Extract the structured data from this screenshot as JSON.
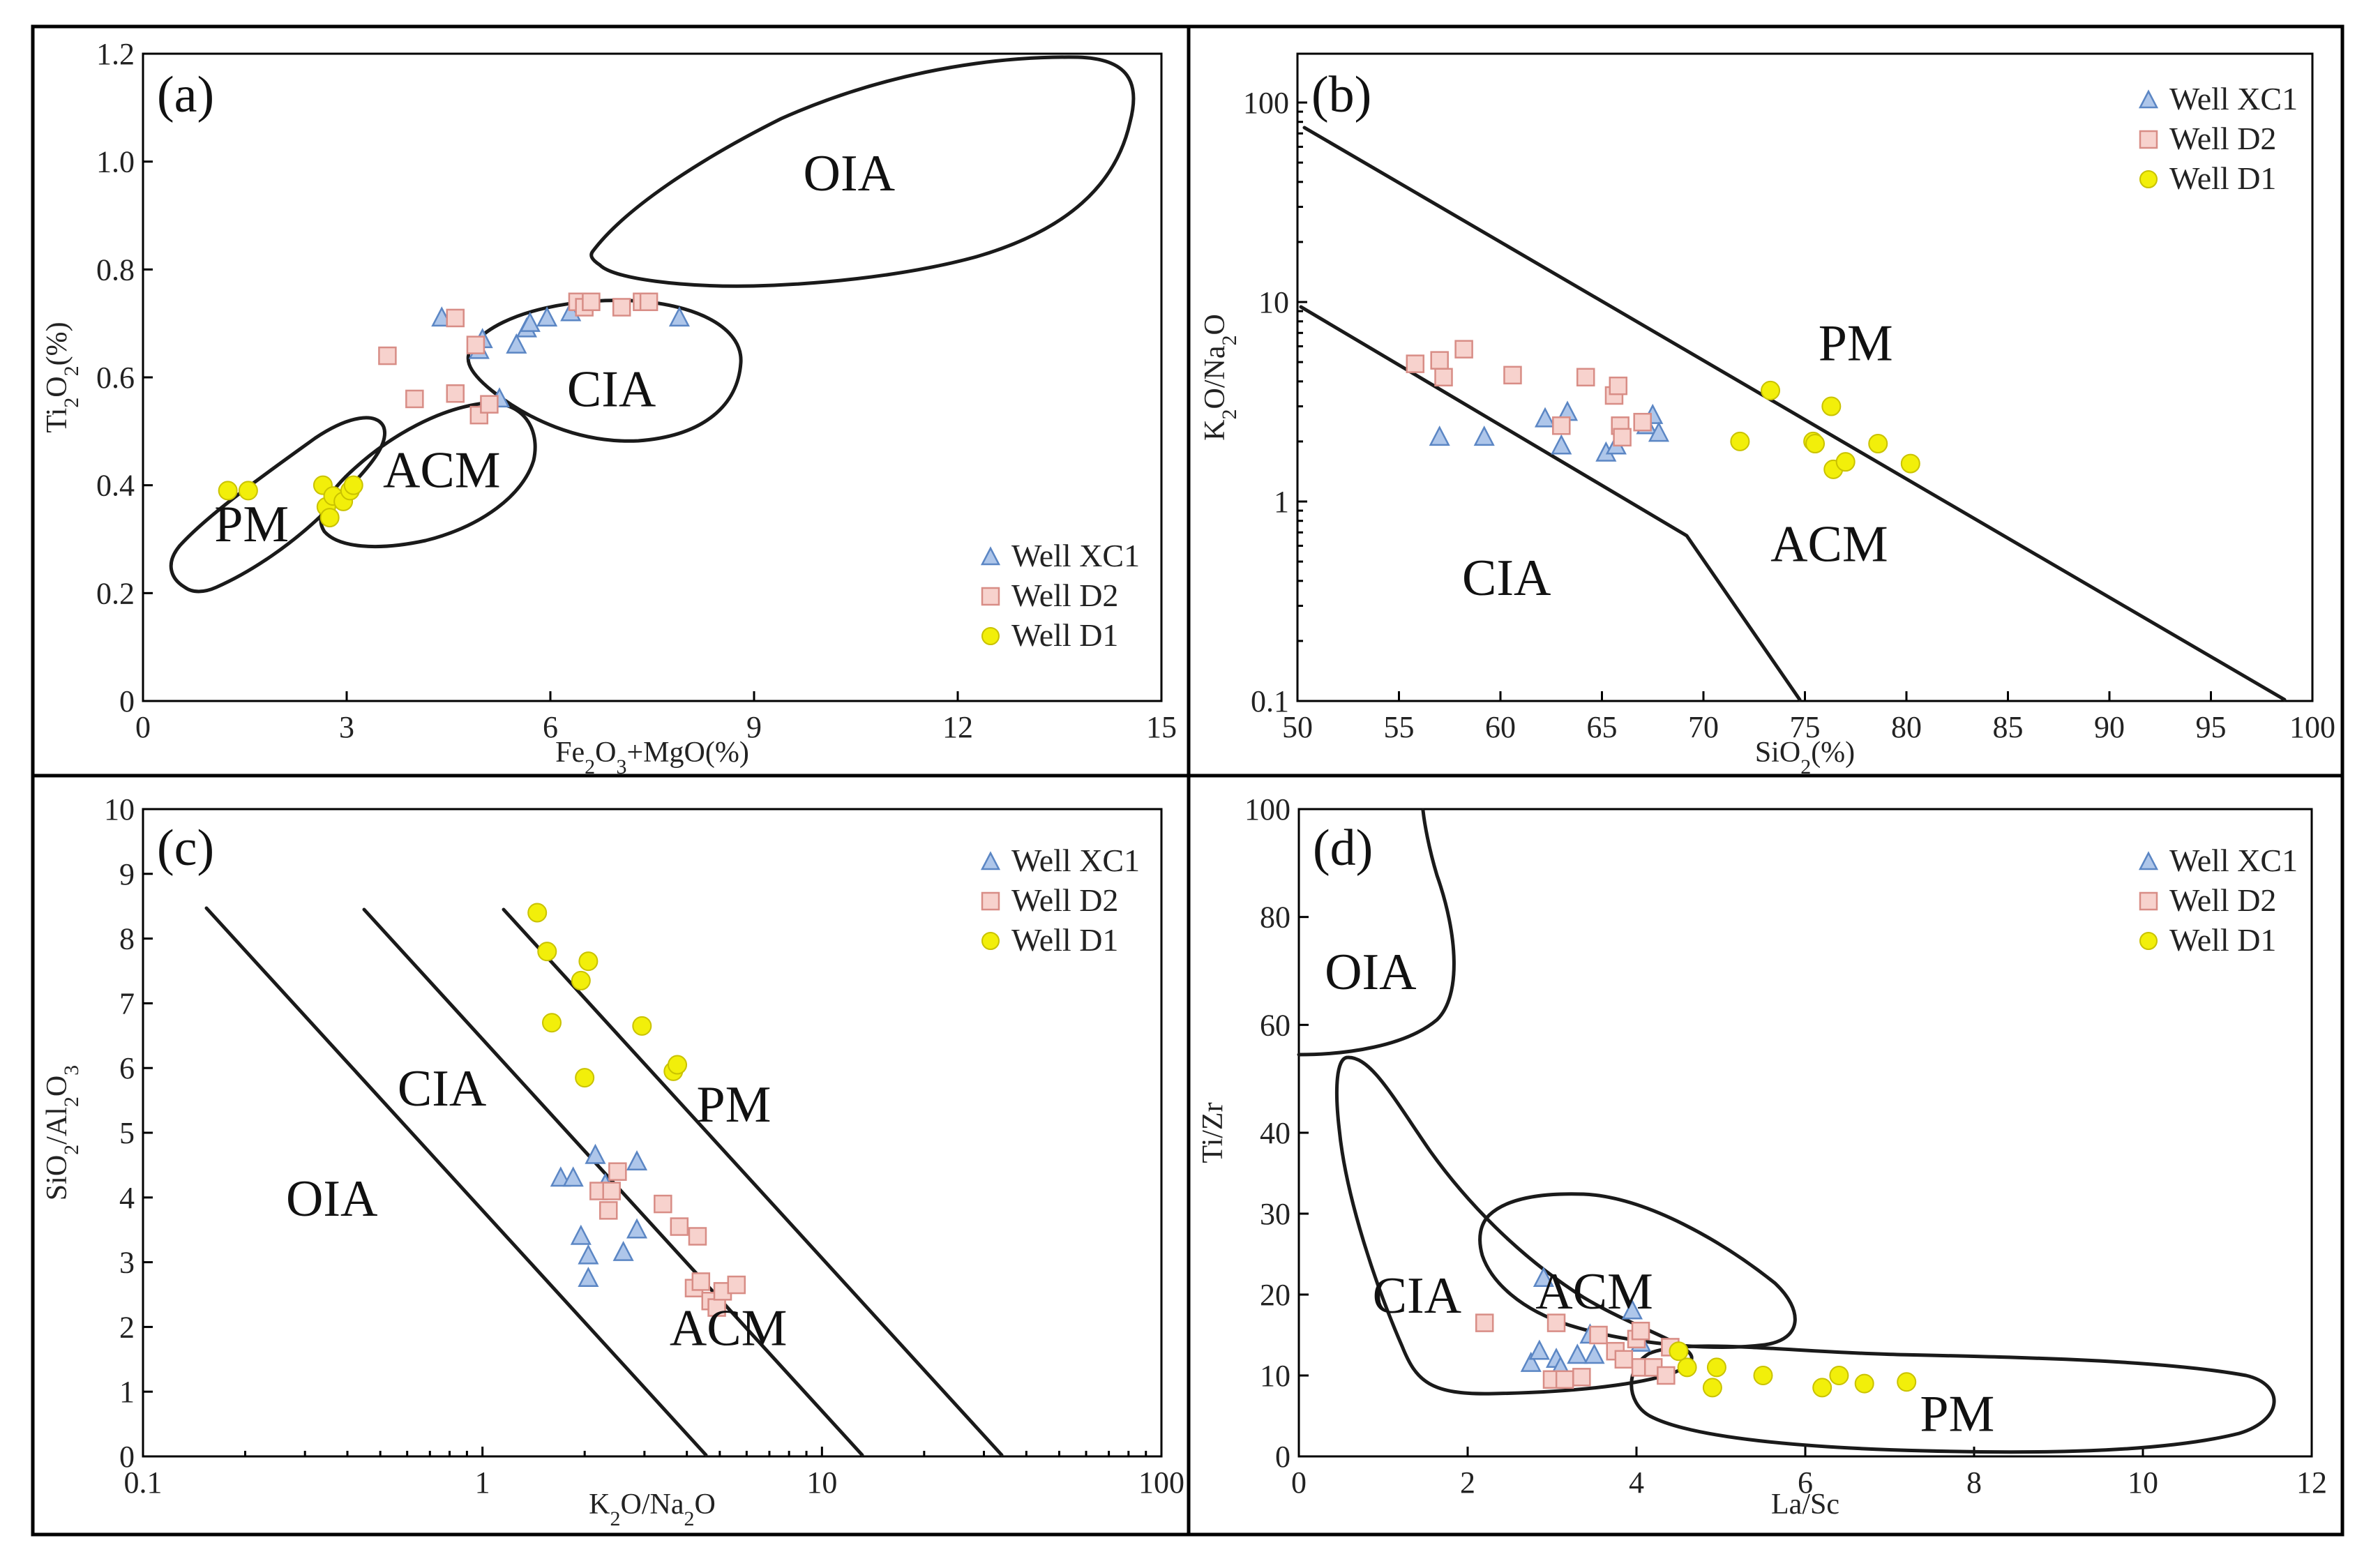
{
  "colors": {
    "triangle_fill": "#aec6ea",
    "triangle_stroke": "#5b86c4",
    "square_fill": "#f7d2cd",
    "square_stroke": "#d88d86",
    "circle_fill": "#f2ef0a",
    "circle_stroke": "#c9c200"
  },
  "legend": [
    "Well XC1",
    "Well D2",
    "Well D1"
  ],
  "chart_data": [
    {
      "id": "a",
      "type": "scatter",
      "panel_label": "(a)",
      "xlabel": "Fe2O3+MgO(%)",
      "ylabel": "Ti2O2(%)",
      "xlim": [
        0,
        15
      ],
      "ylim": [
        0,
        1.2
      ],
      "xticks": [
        0,
        3,
        6,
        9,
        12,
        15
      ],
      "xtick_labels": [
        "0",
        "3",
        "6",
        "9",
        "12",
        "15"
      ],
      "yticks": [
        0,
        0.2,
        0.4,
        0.6,
        0.8,
        1.0,
        1.2
      ],
      "ytick_labels": [
        "0",
        "0.2",
        "0.4",
        "0.6",
        "0.8",
        "1.0",
        "1.2"
      ],
      "regions": [
        {
          "name": "PM",
          "x": 1.6,
          "y": 0.33
        },
        {
          "name": "ACM",
          "x": 4.4,
          "y": 0.43
        },
        {
          "name": "CIA",
          "x": 6.9,
          "y": 0.58
        },
        {
          "name": "OIA",
          "x": 10.4,
          "y": 0.98
        }
      ],
      "series": [
        {
          "name": "Well XC1",
          "marker": "triangle",
          "points": [
            [
              4.4,
              0.71
            ],
            [
              4.95,
              0.65
            ],
            [
              5.0,
              0.67
            ],
            [
              5.25,
              0.56
            ],
            [
              5.5,
              0.66
            ],
            [
              5.65,
              0.69
            ],
            [
              5.7,
              0.7
            ],
            [
              5.95,
              0.71
            ],
            [
              6.3,
              0.72
            ],
            [
              7.9,
              0.71
            ]
          ]
        },
        {
          "name": "Well D2",
          "marker": "square",
          "points": [
            [
              3.6,
              0.64
            ],
            [
              4.0,
              0.56
            ],
            [
              4.6,
              0.71
            ],
            [
              4.6,
              0.57
            ],
            [
              4.9,
              0.66
            ],
            [
              4.95,
              0.53
            ],
            [
              5.1,
              0.55
            ],
            [
              6.4,
              0.74
            ],
            [
              6.5,
              0.73
            ],
            [
              6.6,
              0.74
            ],
            [
              7.05,
              0.73
            ],
            [
              7.35,
              0.74
            ],
            [
              7.45,
              0.74
            ]
          ]
        },
        {
          "name": "Well D1",
          "marker": "circle",
          "points": [
            [
              1.25,
              0.39
            ],
            [
              1.55,
              0.39
            ],
            [
              2.65,
              0.4
            ],
            [
              2.7,
              0.36
            ],
            [
              2.75,
              0.34
            ],
            [
              2.8,
              0.38
            ],
            [
              2.95,
              0.37
            ],
            [
              3.05,
              0.39
            ],
            [
              3.1,
              0.4
            ]
          ]
        }
      ]
    },
    {
      "id": "b",
      "type": "scatter",
      "panel_label": "(b)",
      "xlabel": "SiO2(%)",
      "ylabel": "K2O/Na2O",
      "xlim": [
        50,
        100
      ],
      "ylim": [
        0.1,
        200
      ],
      "yscale": "log",
      "xticks": [
        50,
        55,
        60,
        65,
        70,
        75,
        80,
        85,
        90,
        95,
        100
      ],
      "xtick_labels": [
        "50",
        "55",
        "60",
        "65",
        "70",
        "75",
        "80",
        "85",
        "90",
        "95",
        "100"
      ],
      "yticks": [
        0.1,
        1,
        10,
        100
      ],
      "ytick_labels": [
        "0.1",
        "1",
        "10",
        "100"
      ],
      "regions": [
        {
          "name": "PM",
          "x": 77.5,
          "y": 6.3
        },
        {
          "name": "CIA",
          "x": 60.3,
          "y": 0.42
        },
        {
          "name": "ACM",
          "x": 76.2,
          "y": 0.62
        }
      ],
      "series": [
        {
          "name": "Well XC1",
          "marker": "triangle",
          "points": [
            [
              57.0,
              2.1
            ],
            [
              59.2,
              2.1
            ],
            [
              62.2,
              2.6
            ],
            [
              63.0,
              1.9
            ],
            [
              63.3,
              2.8
            ],
            [
              65.2,
              1.75
            ],
            [
              65.7,
              1.9
            ],
            [
              67.2,
              2.4
            ],
            [
              67.5,
              2.7
            ],
            [
              67.8,
              2.2
            ]
          ]
        },
        {
          "name": "Well D2",
          "marker": "square",
          "points": [
            [
              55.8,
              4.9
            ],
            [
              57.0,
              5.1
            ],
            [
              57.2,
              4.2
            ],
            [
              58.2,
              5.8
            ],
            [
              60.6,
              4.3
            ],
            [
              63.0,
              2.4
            ],
            [
              64.2,
              4.2
            ],
            [
              65.6,
              3.4
            ],
            [
              65.8,
              3.8
            ],
            [
              65.9,
              2.4
            ],
            [
              66.0,
              2.1
            ],
            [
              67.0,
              2.5
            ]
          ]
        },
        {
          "name": "Well D1",
          "marker": "circle",
          "points": [
            [
              71.8,
              2.0
            ],
            [
              73.3,
              3.6
            ],
            [
              75.4,
              2.0
            ],
            [
              75.5,
              1.95
            ],
            [
              76.3,
              3.0
            ],
            [
              76.4,
              1.45
            ],
            [
              77.0,
              1.58
            ],
            [
              78.6,
              1.95
            ],
            [
              80.2,
              1.55
            ]
          ]
        }
      ]
    },
    {
      "id": "c",
      "type": "scatter",
      "panel_label": "(c)",
      "xlabel": "K2O/Na2O",
      "ylabel": "SiO2/Al2O3",
      "xlim": [
        0.1,
        100
      ],
      "xscale": "log",
      "ylim": [
        0,
        10
      ],
      "xticks": [
        0.1,
        1,
        10,
        100
      ],
      "xtick_labels": [
        "0.1",
        "1",
        "10",
        "100"
      ],
      "yticks": [
        0,
        1,
        2,
        3,
        4,
        5,
        6,
        7,
        8,
        9,
        10
      ],
      "ytick_labels": [
        "0",
        "1",
        "2",
        "3",
        "4",
        "5",
        "6",
        "7",
        "8",
        "9",
        "10"
      ],
      "regions": [
        {
          "name": "OIA",
          "x": 0.36,
          "y": 4.0
        },
        {
          "name": "CIA",
          "x": 0.76,
          "y": 5.7
        },
        {
          "name": "PM",
          "x": 5.5,
          "y": 5.45
        },
        {
          "name": "ACM",
          "x": 5.3,
          "y": 2.0
        }
      ],
      "series": [
        {
          "name": "Well XC1",
          "marker": "triangle",
          "points": [
            [
              1.7,
              4.3
            ],
            [
              1.85,
              4.3
            ],
            [
              1.95,
              3.4
            ],
            [
              2.05,
              3.1
            ],
            [
              2.05,
              2.75
            ],
            [
              2.15,
              4.65
            ],
            [
              2.3,
              4.2
            ],
            [
              2.6,
              3.15
            ],
            [
              2.85,
              3.5
            ],
            [
              2.85,
              4.55
            ]
          ]
        },
        {
          "name": "Well D2",
          "marker": "square",
          "points": [
            [
              2.2,
              4.1
            ],
            [
              2.35,
              3.8
            ],
            [
              2.4,
              4.1
            ],
            [
              2.5,
              4.4
            ],
            [
              3.4,
              3.9
            ],
            [
              3.8,
              3.55
            ],
            [
              4.3,
              3.4
            ],
            [
              4.2,
              2.6
            ],
            [
              4.4,
              2.7
            ],
            [
              4.7,
              2.4
            ],
            [
              4.9,
              2.3
            ],
            [
              5.1,
              2.55
            ],
            [
              5.6,
              2.65
            ]
          ]
        },
        {
          "name": "Well D1",
          "marker": "circle",
          "points": [
            [
              1.45,
              8.4
            ],
            [
              1.55,
              7.8
            ],
            [
              1.6,
              6.7
            ],
            [
              1.95,
              7.35
            ],
            [
              2.0,
              5.85
            ],
            [
              2.05,
              7.65
            ],
            [
              2.95,
              6.65
            ],
            [
              3.65,
              5.95
            ],
            [
              3.75,
              6.05
            ]
          ]
        }
      ]
    },
    {
      "id": "d",
      "type": "scatter",
      "panel_label": "(d)",
      "xlabel": "La/Sc",
      "ylabel": "Ti/Zr",
      "xlim": [
        0,
        12
      ],
      "ylim": [
        0,
        100
      ],
      "xticks": [
        0,
        2,
        4,
        6,
        8,
        10,
        12
      ],
      "xtick_labels": [
        "0",
        "2",
        "4",
        "6",
        "8",
        "10",
        "12"
      ],
      "yticks": [
        0,
        10,
        20,
        30,
        40,
        60,
        80,
        100
      ],
      "ytick_labels": [
        "0",
        "10",
        "20",
        "30",
        "40",
        "60",
        "80",
        "100"
      ],
      "regions": [
        {
          "name": "OIA",
          "x": 0.85,
          "y": 70
        },
        {
          "name": "CIA",
          "x": 1.4,
          "y": 20
        },
        {
          "name": "ACM",
          "x": 3.5,
          "y": 20.5
        },
        {
          "name": "PM",
          "x": 7.8,
          "y": 5.4
        }
      ],
      "series": [
        {
          "name": "Well XC1",
          "marker": "triangle",
          "points": [
            [
              2.75,
              11.5
            ],
            [
              2.85,
              13.0
            ],
            [
              2.9,
              22.0
            ],
            [
              3.05,
              12.0
            ],
            [
              3.1,
              11.0
            ],
            [
              3.3,
              12.5
            ],
            [
              3.45,
              15.0
            ],
            [
              3.5,
              12.5
            ],
            [
              3.95,
              18.0
            ],
            [
              4.05,
              14.0
            ]
          ]
        },
        {
          "name": "Well D2",
          "marker": "square",
          "points": [
            [
              2.2,
              16.5
            ],
            [
              3.0,
              9.5
            ],
            [
              3.05,
              16.5
            ],
            [
              3.15,
              9.5
            ],
            [
              3.35,
              9.8
            ],
            [
              3.55,
              15.0
            ],
            [
              3.75,
              13.0
            ],
            [
              3.85,
              12.0
            ],
            [
              4.0,
              14.5
            ],
            [
              4.05,
              15.5
            ],
            [
              4.05,
              11.0
            ],
            [
              4.2,
              11.0
            ],
            [
              4.35,
              10.0
            ],
            [
              4.4,
              13.5
            ]
          ]
        },
        {
          "name": "Well D1",
          "marker": "circle",
          "points": [
            [
              4.5,
              13.0
            ],
            [
              4.6,
              11.0
            ],
            [
              4.9,
              8.5
            ],
            [
              4.95,
              11.0
            ],
            [
              5.5,
              10.0
            ],
            [
              6.2,
              8.5
            ],
            [
              6.4,
              10.0
            ],
            [
              6.7,
              9.0
            ],
            [
              7.2,
              9.2
            ]
          ]
        }
      ]
    }
  ]
}
